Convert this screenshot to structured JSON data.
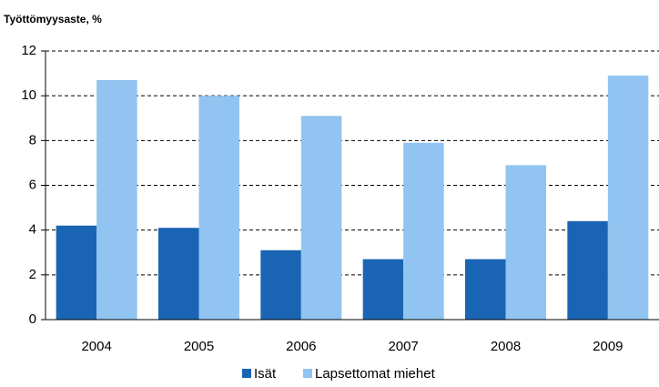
{
  "chart_data": {
    "type": "bar",
    "title": "Työttömyysaste, %",
    "categories": [
      "2004",
      "2005",
      "2006",
      "2007",
      "2008",
      "2009"
    ],
    "series": [
      {
        "name": "Isät",
        "color": "#1a64b4",
        "values": [
          4.2,
          4.1,
          3.1,
          2.7,
          2.7,
          4.4
        ]
      },
      {
        "name": "Lapsettomat miehet",
        "color": "#91c4f0",
        "values": [
          10.7,
          10.0,
          9.1,
          7.9,
          6.9,
          10.9
        ]
      }
    ],
    "ylim": [
      0,
      12
    ],
    "yticks": [
      0,
      2,
      4,
      6,
      8,
      10,
      12
    ],
    "grid": true,
    "legend": "bottom"
  }
}
